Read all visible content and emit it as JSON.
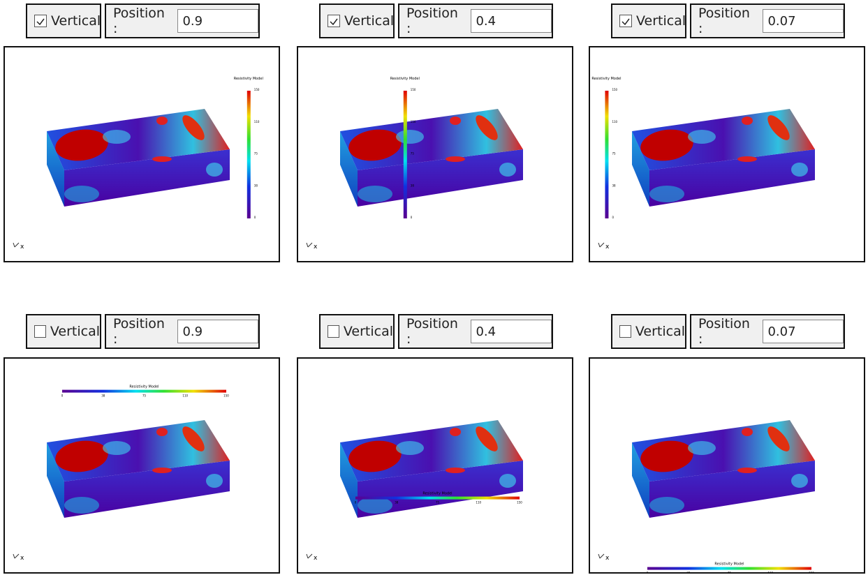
{
  "panels": [
    {
      "vertical": true,
      "checkbox_label": "Vertical",
      "position_label": "Position :",
      "position": 0.9
    },
    {
      "vertical": true,
      "checkbox_label": "Vertical",
      "position_label": "Position :",
      "position": 0.4
    },
    {
      "vertical": true,
      "checkbox_label": "Vertical",
      "position_label": "Position :",
      "position": 0.07
    },
    {
      "vertical": false,
      "checkbox_label": "Vertical",
      "position_label": "Position :",
      "position": 0.9
    },
    {
      "vertical": false,
      "checkbox_label": "Vertical",
      "position_label": "Position :",
      "position": 0.4
    },
    {
      "vertical": false,
      "checkbox_label": "Vertical",
      "position_label": "Position :",
      "position": 0.07
    }
  ],
  "colorbar": {
    "title": "Resistivity Model",
    "ticks": [
      "0",
      "38",
      "75",
      "110",
      "150"
    ]
  },
  "axis_label": "x"
}
